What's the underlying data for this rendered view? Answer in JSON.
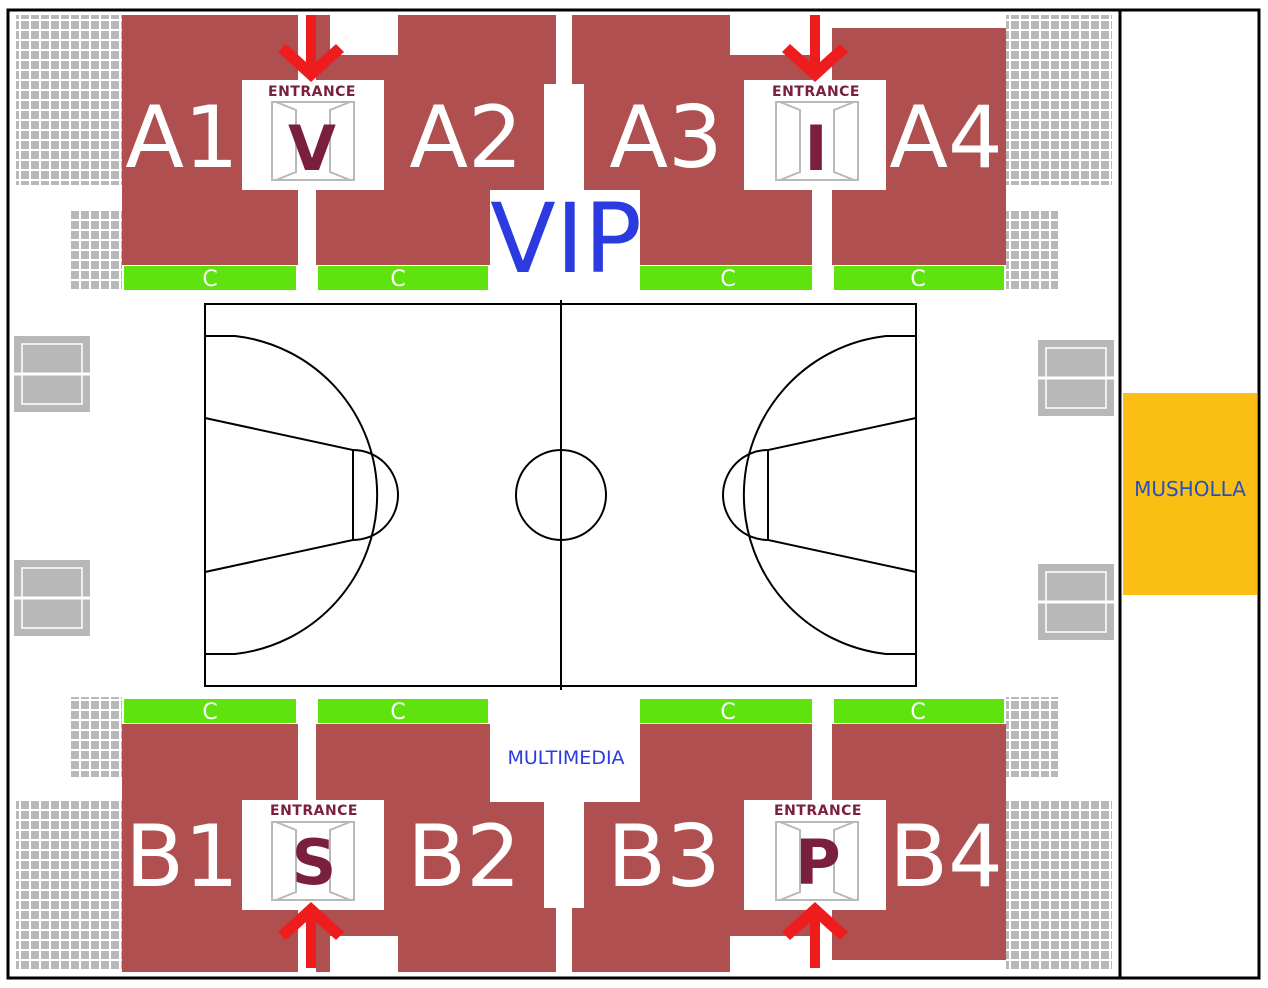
{
  "colors": {
    "section": "#b04f4f",
    "row_c": "#5ee30e",
    "musholla": "#fbbf14",
    "seat": "#b8b8b8",
    "vip_text": "#2b3be0",
    "arrow": "#ee1c1c",
    "gate_text": "#7a1f3d"
  },
  "sections_top": [
    {
      "name": "A1",
      "gate": "V"
    },
    {
      "name": "A2",
      "gate": ""
    },
    {
      "name": "A3",
      "gate": "I"
    },
    {
      "name": "A4",
      "gate": ""
    }
  ],
  "sections_bottom": [
    {
      "name": "B1",
      "gate": "S"
    },
    {
      "name": "B2",
      "gate": ""
    },
    {
      "name": "B3",
      "gate": "P"
    },
    {
      "name": "B4",
      "gate": ""
    }
  ],
  "entrances": [
    {
      "label": "ENTRANCE",
      "letter": "V"
    },
    {
      "label": "ENTRANCE",
      "letter": "I"
    },
    {
      "label": "ENTRANCE",
      "letter": "S"
    },
    {
      "label": "ENTRANCE",
      "letter": "P"
    }
  ],
  "row_label": "C",
  "vip_label": "VIP",
  "multimedia_label": "MULTIMEDIA",
  "musholla_label": "MUSHOLLA",
  "icons": [
    "entrance-arrow-icon",
    "door-icon",
    "seat-block-icon",
    "basketball-court-icon"
  ]
}
